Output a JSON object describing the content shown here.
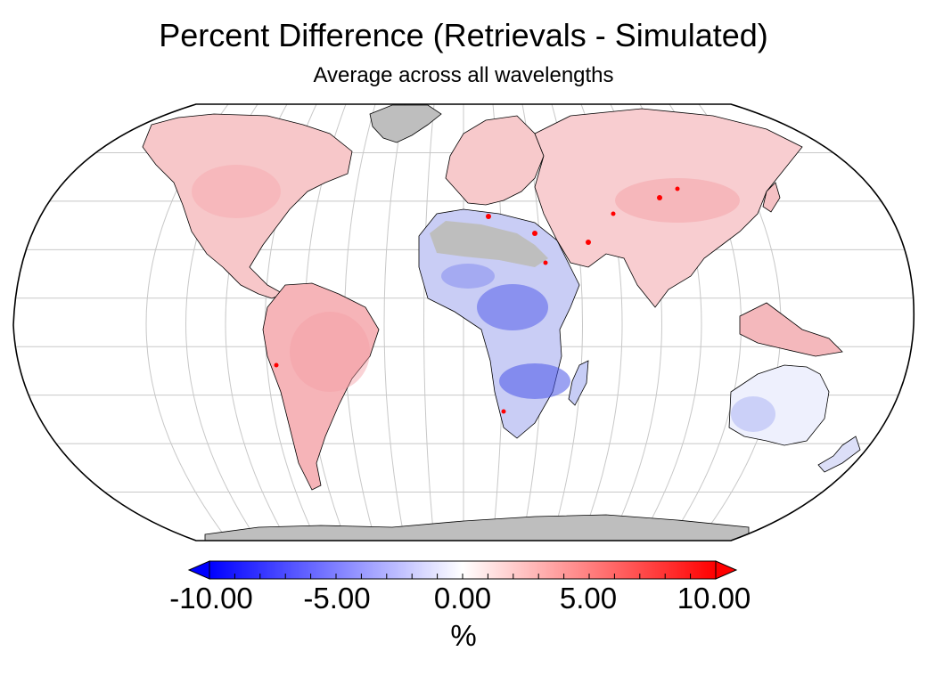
{
  "title": "Percent Difference (Retrievals - Simulated)",
  "subtitle": "Average across all wavelengths",
  "colorbar": {
    "ticks": [
      "-10.00",
      "-5.00",
      "0.00",
      "5.00",
      "10.00"
    ],
    "min": -10,
    "max": 10,
    "unit": "%",
    "colors": {
      "low": "#0000ff",
      "mid": "#ffffff",
      "high": "#ff0000"
    }
  },
  "map": {
    "projection": "Robinson",
    "ocean_color": "#ffffff",
    "no_data_color": "#bebebe",
    "graticule_color": "#c8c8c8"
  }
}
